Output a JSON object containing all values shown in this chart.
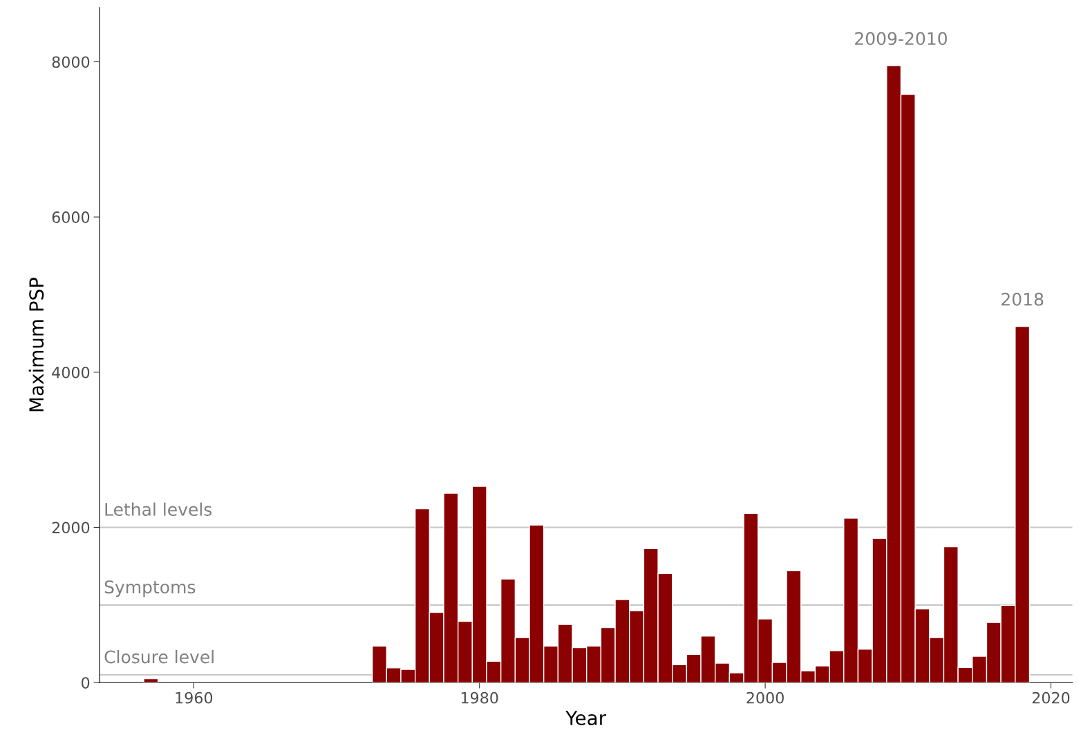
{
  "chart_data": {
    "type": "bar",
    "xlabel": "Year",
    "ylabel": "Maximum PSP",
    "x": [
      1957,
      1973,
      1974,
      1975,
      1976,
      1977,
      1978,
      1979,
      1980,
      1981,
      1982,
      1983,
      1984,
      1985,
      1986,
      1987,
      1988,
      1989,
      1990,
      1991,
      1992,
      1993,
      1994,
      1995,
      1996,
      1997,
      1998,
      1999,
      2000,
      2001,
      2002,
      2003,
      2004,
      2005,
      2006,
      2007,
      2008,
      2009,
      2010,
      2011,
      2012,
      2013,
      2014,
      2015,
      2016,
      2017,
      2018
    ],
    "values": [
      50,
      470,
      190,
      170,
      2240,
      905,
      2440,
      790,
      2530,
      275,
      1335,
      580,
      2030,
      470,
      750,
      450,
      470,
      710,
      1070,
      925,
      1725,
      1405,
      230,
      365,
      600,
      250,
      125,
      2180,
      820,
      260,
      1440,
      150,
      215,
      410,
      2120,
      430,
      1860,
      7950,
      7580,
      950,
      580,
      1750,
      195,
      340,
      775,
      995,
      4590
    ],
    "color": "#8b0000",
    "xlim": [
      1953.4,
      2021.5
    ],
    "xticks": [
      1960,
      1980,
      2000,
      2020
    ],
    "ylim": [
      0,
      8700
    ],
    "yticks": [
      0,
      2000,
      4000,
      6000,
      8000
    ],
    "ref_lines": [
      {
        "axis": "y",
        "value": 2000,
        "label": "Lethal levels",
        "color": "#c8c8c8"
      },
      {
        "axis": "y",
        "value": 1000,
        "label": "Symptoms",
        "color": "#c8c8c8"
      },
      {
        "axis": "y",
        "value": 100,
        "label": "Closure level",
        "color": "#c8c8c8"
      }
    ],
    "annotations": [
      {
        "text": "2009-2010",
        "x": 2009.5,
        "y": 7950
      },
      {
        "text": "2018",
        "x": 2018,
        "y": 4590
      }
    ],
    "grid": false
  }
}
